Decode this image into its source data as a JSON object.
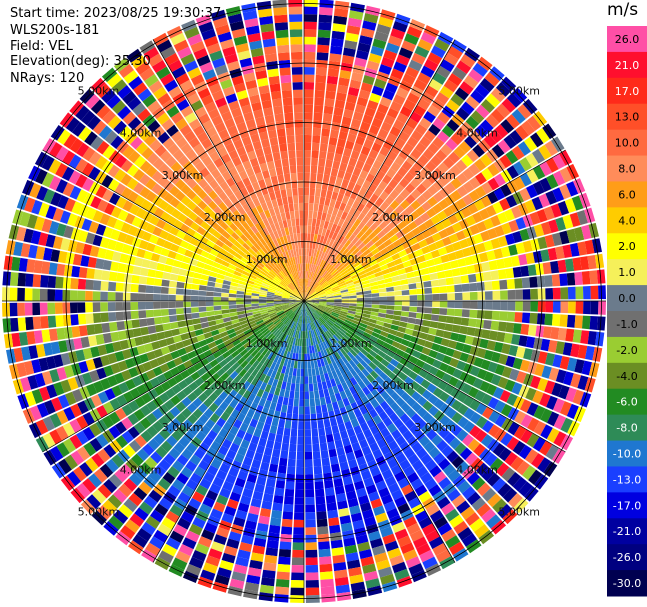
{
  "header": {
    "start_time": "Start time: 2023/08/25 19:30:37",
    "instrument": "WLS200s-181",
    "field": "Field: VEL",
    "elevation": "Elevation(deg): 35.30",
    "nrays": "NRays: 120"
  },
  "colorbar": {
    "unit": "m/s",
    "bins": [
      {
        "label": "26.0",
        "color": "#ff4fa6"
      },
      {
        "label": "21.0",
        "color": "#ff0f2e"
      },
      {
        "label": "17.0",
        "color": "#ff2a1a"
      },
      {
        "label": "13.0",
        "color": "#ff4f28"
      },
      {
        "label": "10.0",
        "color": "#ff6a40"
      },
      {
        "label": "8.0",
        "color": "#ff8c5a"
      },
      {
        "label": "6.0",
        "color": "#ff9d18"
      },
      {
        "label": "4.0",
        "color": "#ffcc00"
      },
      {
        "label": "2.0",
        "color": "#ffff00"
      },
      {
        "label": "1.0",
        "color": "#f5f05a"
      },
      {
        "label": "0.0",
        "color": "#6b7b8c"
      },
      {
        "label": "-1.0",
        "color": "#707070"
      },
      {
        "label": "-2.0",
        "color": "#9acd32"
      },
      {
        "label": "-4.0",
        "color": "#6b8e23"
      },
      {
        "label": "-6.0",
        "color": "#228b22"
      },
      {
        "label": "-8.0",
        "color": "#2e8b57"
      },
      {
        "label": "-10.0",
        "color": "#1f77d0"
      },
      {
        "label": "-13.0",
        "color": "#1a3fff"
      },
      {
        "label": "-17.0",
        "color": "#0000e0"
      },
      {
        "label": "-21.0",
        "color": "#0000a0"
      },
      {
        "label": "-26.0",
        "color": "#000080"
      },
      {
        "label": "-30.0",
        "color": "#000050"
      }
    ]
  },
  "chart_data": {
    "type": "heatmap",
    "projection": "polar PPI",
    "field": "VEL",
    "units": "m/s",
    "n_rays": 120,
    "elevation_deg": 35.3,
    "range_rings_km": [
      1.0,
      2.0,
      3.0,
      4.0,
      5.0
    ],
    "range_ring_labels": [
      "1.00km",
      "2.00km",
      "3.00km",
      "4.00km",
      "5.00km"
    ],
    "velocity_pattern": {
      "north_sector": "positive, about 8 to 17 m/s",
      "east_west_axis": "near zero, about -2 to 2 m/s",
      "south_sector": "negative, about -6 to -10 m/s",
      "outer_ranges": "noisy, full color range"
    }
  }
}
